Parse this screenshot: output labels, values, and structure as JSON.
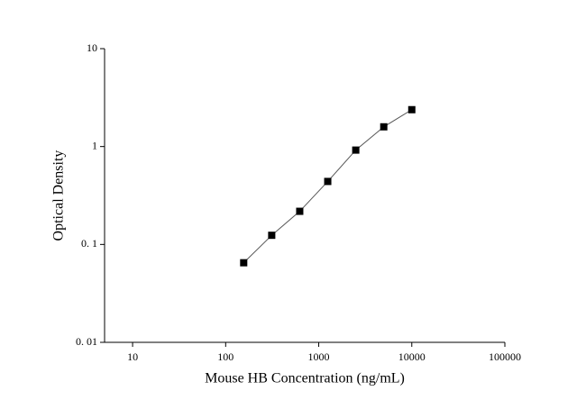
{
  "chart_data": {
    "type": "line",
    "x_label": "Mouse HB Concentration (ng/mL)",
    "y_label": "Optical Density",
    "x": [
      156.25,
      312.5,
      625,
      1250,
      2500,
      5000,
      10000
    ],
    "values": [
      0.065,
      0.124,
      0.218,
      0.44,
      0.92,
      1.59,
      2.38
    ],
    "color": "#000000",
    "line_color": "#555555",
    "xlim": [
      5,
      100000
    ],
    "xticks": [
      10,
      100,
      1000,
      10000,
      100000
    ],
    "ylim": [
      0.01,
      10
    ],
    "yticks": [
      {
        "value": 0.01,
        "label": "0. 01"
      },
      {
        "value": 0.1,
        "label": "0. 1"
      },
      1,
      10
    ],
    "xscale": "log",
    "yscale": "log"
  }
}
